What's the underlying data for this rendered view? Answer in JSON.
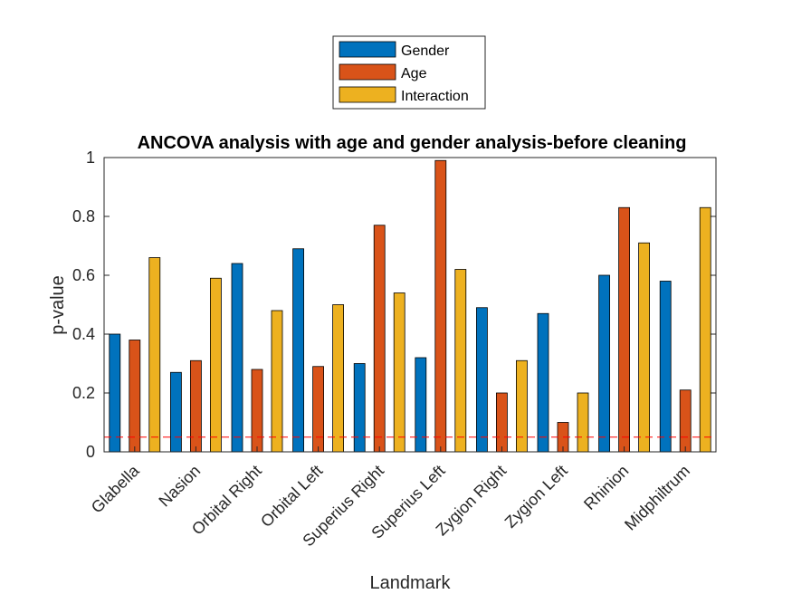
{
  "chart_data": {
    "type": "bar",
    "title": "ANCOVA analysis with age and gender analysis-before cleaning",
    "xlabel": "Landmark",
    "ylabel": "p-value",
    "ylim": [
      0,
      1
    ],
    "yticks": [
      "0",
      "0.2",
      "0.4",
      "0.6",
      "0.8",
      "1"
    ],
    "categories": [
      "Glabella",
      "Nasion",
      "Orbital Right",
      "Orbital Left",
      "Superius Right",
      "Superius Left",
      "Zygion Right",
      "Zygion Left",
      "Rhinion",
      "Midphiltrum"
    ],
    "series": [
      {
        "name": "Gender",
        "color": "#0072BD",
        "values": [
          0.4,
          0.27,
          0.64,
          0.69,
          0.3,
          0.32,
          0.49,
          0.47,
          0.6,
          0.58
        ]
      },
      {
        "name": "Age",
        "color": "#D95319",
        "values": [
          0.38,
          0.31,
          0.28,
          0.29,
          0.77,
          0.99,
          0.2,
          0.1,
          0.83,
          0.21
        ]
      },
      {
        "name": "Interaction",
        "color": "#EDB120",
        "values": [
          0.66,
          0.59,
          0.48,
          0.5,
          0.54,
          0.62,
          0.31,
          0.2,
          0.71,
          0.83
        ]
      }
    ],
    "reference_line": {
      "value": 0.05,
      "color": "#FF0000",
      "style": "dashed"
    },
    "grid": false,
    "legend_position": "top-center outside"
  }
}
